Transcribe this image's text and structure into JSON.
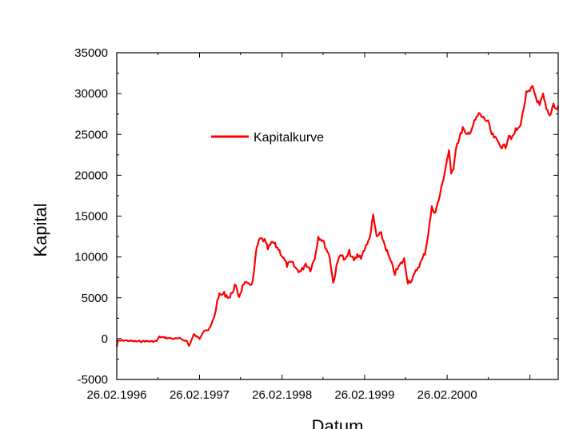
{
  "chart_data": {
    "type": "line",
    "title": "",
    "xlabel": "Datum",
    "ylabel": "Kapital",
    "ylim": [
      -5000,
      35000
    ],
    "yticks": [
      -5000,
      0,
      5000,
      10000,
      15000,
      20000,
      25000,
      30000,
      35000
    ],
    "xlim": [
      "1996-02-26",
      "2001-07-01"
    ],
    "xtick_labels": [
      "26.02.1996",
      "26.02.1997",
      "26.02.1998",
      "26.02.1999",
      "26.02.2000"
    ],
    "grid": false,
    "legend_position": "upper-left",
    "series_color": "#ff0000",
    "series": [
      {
        "name": "Kapitalkurve",
        "points": [
          [
            "1996-02-26",
            -1000
          ],
          [
            "1996-03-01",
            -300
          ],
          [
            "1996-04-01",
            -200
          ],
          [
            "1996-05-01",
            -300
          ],
          [
            "1996-06-01",
            -350
          ],
          [
            "1996-07-01",
            -300
          ],
          [
            "1996-08-01",
            -350
          ],
          [
            "1996-08-20",
            -300
          ],
          [
            "1996-09-01",
            200
          ],
          [
            "1996-10-01",
            100
          ],
          [
            "1996-11-01",
            0
          ],
          [
            "1996-12-01",
            0
          ],
          [
            "1997-01-01",
            -300
          ],
          [
            "1997-01-10",
            -900
          ],
          [
            "1997-02-01",
            500
          ],
          [
            "1997-02-26",
            0
          ],
          [
            "1997-03-20",
            1200
          ],
          [
            "1997-04-10",
            1000
          ],
          [
            "1997-05-01",
            2500
          ],
          [
            "1997-05-20",
            5200
          ],
          [
            "1997-06-15",
            5500
          ],
          [
            "1997-07-10",
            5000
          ],
          [
            "1997-08-01",
            6500
          ],
          [
            "1997-08-20",
            5200
          ],
          [
            "1997-09-10",
            6800
          ],
          [
            "1997-10-01",
            6500
          ],
          [
            "1997-10-20",
            7000
          ],
          [
            "1997-11-05",
            11000
          ],
          [
            "1997-11-20",
            12200
          ],
          [
            "1997-12-10",
            12000
          ],
          [
            "1997-12-25",
            11000
          ],
          [
            "1998-01-15",
            11800
          ],
          [
            "1998-02-10",
            11000
          ],
          [
            "1998-03-01",
            10000
          ],
          [
            "1998-03-20",
            9000
          ],
          [
            "1998-04-10",
            9300
          ],
          [
            "1998-05-01",
            8500
          ],
          [
            "1998-05-20",
            8200
          ],
          [
            "1998-06-10",
            9200
          ],
          [
            "1998-07-01",
            8500
          ],
          [
            "1998-07-20",
            9800
          ],
          [
            "1998-08-05",
            12500
          ],
          [
            "1998-08-25",
            12000
          ],
          [
            "1998-09-10",
            11000
          ],
          [
            "1998-09-25",
            10000
          ],
          [
            "1998-10-10",
            6800
          ],
          [
            "1998-10-25",
            8800
          ],
          [
            "1998-11-10",
            10500
          ],
          [
            "1998-12-01",
            9500
          ],
          [
            "1998-12-20",
            10600
          ],
          [
            "1999-01-10",
            9500
          ],
          [
            "1999-01-25",
            10200
          ],
          [
            "1999-02-10",
            10000
          ],
          [
            "1999-02-26",
            11000
          ],
          [
            "1999-03-10",
            11500
          ],
          [
            "1999-03-25",
            13000
          ],
          [
            "1999-04-05",
            15000
          ],
          [
            "1999-04-20",
            12500
          ],
          [
            "1999-05-10",
            12800
          ],
          [
            "1999-06-01",
            11000
          ],
          [
            "1999-06-20",
            9500
          ],
          [
            "1999-07-10",
            8000
          ],
          [
            "1999-08-01",
            9000
          ],
          [
            "1999-08-20",
            9700
          ],
          [
            "1999-09-05",
            7000
          ],
          [
            "1999-09-25",
            7200
          ],
          [
            "1999-10-15",
            8500
          ],
          [
            "1999-11-05",
            9500
          ],
          [
            "1999-11-20",
            10500
          ],
          [
            "1999-12-05",
            13000
          ],
          [
            "1999-12-20",
            16000
          ],
          [
            "2000-01-05",
            15500
          ],
          [
            "2000-01-20",
            17000
          ],
          [
            "2000-02-05",
            19000
          ],
          [
            "2000-02-26",
            22000
          ],
          [
            "2000-03-05",
            23000
          ],
          [
            "2000-03-15",
            20000
          ],
          [
            "2000-03-25",
            21000
          ],
          [
            "2000-04-05",
            23500
          ],
          [
            "2000-04-20",
            24500
          ],
          [
            "2000-05-05",
            25800
          ],
          [
            "2000-05-20",
            24800
          ],
          [
            "2000-06-10",
            25500
          ],
          [
            "2000-06-25",
            26500
          ],
          [
            "2000-07-15",
            27500
          ],
          [
            "2000-08-05",
            27000
          ],
          [
            "2000-08-25",
            26500
          ],
          [
            "2000-09-10",
            25000
          ],
          [
            "2000-09-25",
            24500
          ],
          [
            "2000-10-10",
            24000
          ],
          [
            "2000-10-25",
            23500
          ],
          [
            "2000-11-10",
            23500
          ],
          [
            "2000-11-25",
            25000
          ],
          [
            "2000-12-10",
            24500
          ],
          [
            "2000-12-25",
            25500
          ],
          [
            "2001-01-10",
            25800
          ],
          [
            "2001-01-25",
            27500
          ],
          [
            "2001-02-10",
            30000
          ],
          [
            "2001-02-25",
            30200
          ],
          [
            "2001-03-10",
            30800
          ],
          [
            "2001-03-25",
            29500
          ],
          [
            "2001-04-10",
            28500
          ],
          [
            "2001-04-25",
            29800
          ],
          [
            "2001-05-10",
            28000
          ],
          [
            "2001-05-25",
            27200
          ],
          [
            "2001-06-10",
            28800
          ],
          [
            "2001-06-25",
            28000
          ],
          [
            "2001-07-01",
            28500
          ]
        ]
      }
    ]
  }
}
